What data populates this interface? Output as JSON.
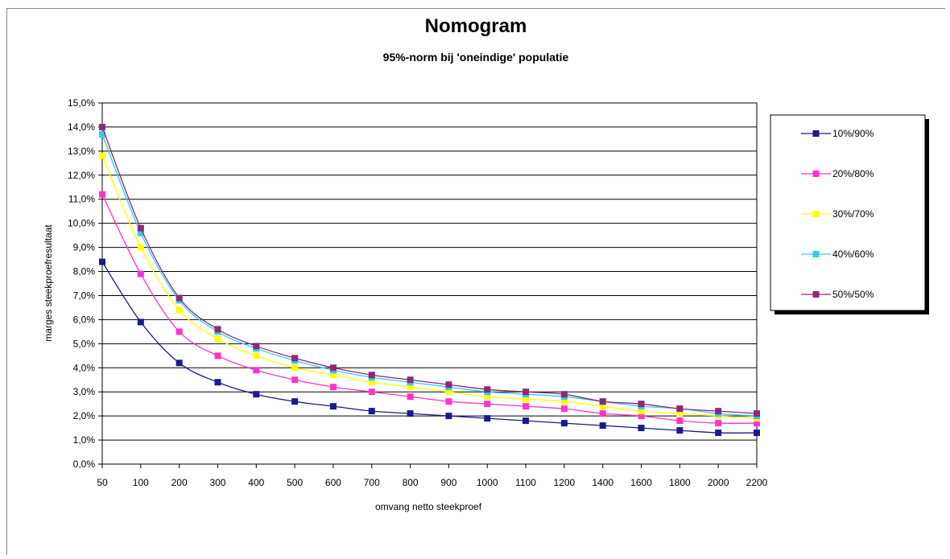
{
  "chart_data": {
    "type": "line",
    "title": "Nomogram",
    "subtitle": "95%-norm bij 'oneindige' populatie",
    "xlabel": "omvang netto steekproef",
    "ylabel": "marges steekproefresultaat",
    "categories": [
      "50",
      "100",
      "200",
      "300",
      "400",
      "500",
      "600",
      "700",
      "800",
      "900",
      "1000",
      "1100",
      "1200",
      "1400",
      "1600",
      "1800",
      "2000",
      "2200"
    ],
    "yticks": [
      "0,0%",
      "1,0%",
      "2,0%",
      "3,0%",
      "4,0%",
      "5,0%",
      "6,0%",
      "7,0%",
      "8,0%",
      "9,0%",
      "10,0%",
      "11,0%",
      "12,0%",
      "13,0%",
      "14,0%",
      "15,0%"
    ],
    "ylim": [
      0,
      15
    ],
    "grid": "horizontal",
    "legend_position": "right",
    "series": [
      {
        "name": "10%/90%",
        "color": "#1a1a8c",
        "values": [
          8.4,
          5.9,
          4.2,
          3.4,
          2.9,
          2.6,
          2.4,
          2.2,
          2.1,
          2.0,
          1.9,
          1.8,
          1.7,
          1.6,
          1.5,
          1.4,
          1.3,
          1.3
        ]
      },
      {
        "name": "20%/80%",
        "color": "#ff33cc",
        "values": [
          11.2,
          7.9,
          5.5,
          4.5,
          3.9,
          3.5,
          3.2,
          3.0,
          2.8,
          2.6,
          2.5,
          2.4,
          2.3,
          2.1,
          2.0,
          1.8,
          1.7,
          1.7
        ]
      },
      {
        "name": "30%/70%",
        "color": "#ffff00",
        "values": [
          12.8,
          9.0,
          6.4,
          5.2,
          4.5,
          4.0,
          3.7,
          3.4,
          3.2,
          3.0,
          2.8,
          2.7,
          2.6,
          2.4,
          2.2,
          2.1,
          2.0,
          1.9
        ]
      },
      {
        "name": "40%/60%",
        "color": "#33ccee",
        "values": [
          13.7,
          9.6,
          6.8,
          5.5,
          4.8,
          4.3,
          3.9,
          3.6,
          3.4,
          3.2,
          3.0,
          2.9,
          2.8,
          2.6,
          2.4,
          2.3,
          2.1,
          2.0
        ]
      },
      {
        "name": "50%/50%",
        "color": "#8b2a7a",
        "values": [
          14.0,
          9.8,
          6.9,
          5.6,
          4.9,
          4.4,
          4.0,
          3.7,
          3.5,
          3.3,
          3.1,
          3.0,
          2.9,
          2.6,
          2.5,
          2.3,
          2.2,
          2.1
        ]
      }
    ]
  }
}
